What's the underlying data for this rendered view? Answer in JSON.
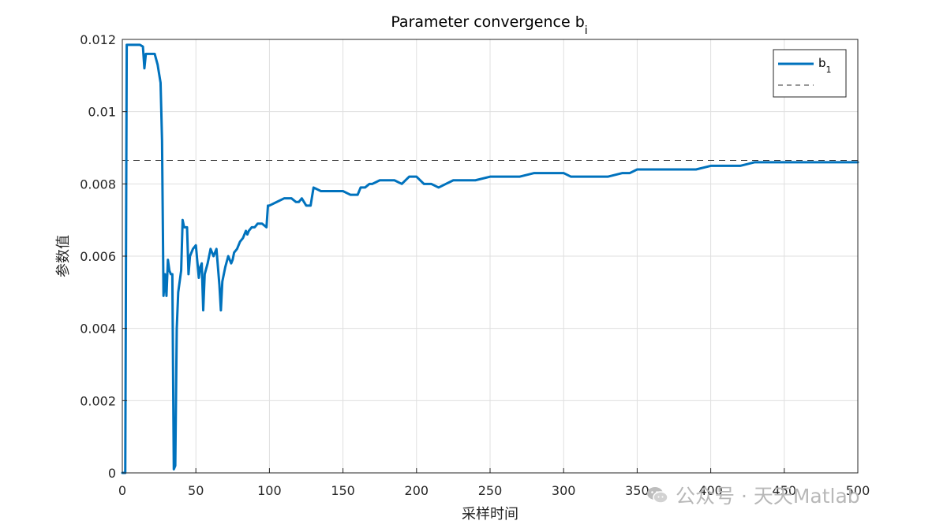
{
  "chart_data": {
    "type": "line",
    "title_main": "Parameter convergence b",
    "title_sub": "i",
    "xlabel": "采样时间",
    "ylabel": "参数值",
    "xlim": [
      0,
      500
    ],
    "ylim": [
      0,
      0.012
    ],
    "xticks": [
      "0",
      "50",
      "100",
      "150",
      "200",
      "250",
      "300",
      "350",
      "400",
      "450",
      "500"
    ],
    "yticks": [
      "0",
      "0.002",
      "0.004",
      "0.006",
      "0.008",
      "0.01",
      "0.012"
    ],
    "grid": true,
    "legend_placement": "top-right",
    "legend": {
      "series_label_main": "b",
      "series_label_sub": "1"
    },
    "reference_value": 0.00865,
    "series": [
      {
        "color": "#0072BD",
        "x": [
          0,
          2,
          3,
          5,
          8,
          10,
          12,
          14,
          15,
          16,
          18,
          20,
          22,
          24,
          26,
          27,
          28,
          29,
          30,
          31,
          32,
          33,
          34,
          35,
          36,
          37,
          38,
          40,
          41,
          42,
          44,
          45,
          46,
          48,
          50,
          52,
          53,
          54,
          55,
          56,
          58,
          60,
          62,
          64,
          66,
          67,
          68,
          70,
          72,
          74,
          75,
          76,
          78,
          80,
          82,
          84,
          85,
          86,
          88,
          90,
          92,
          95,
          98,
          99,
          100,
          105,
          110,
          112,
          115,
          118,
          120,
          122,
          125,
          128,
          130,
          135,
          140,
          145,
          150,
          155,
          160,
          162,
          165,
          168,
          170,
          175,
          180,
          185,
          190,
          195,
          200,
          205,
          210,
          215,
          220,
          225,
          230,
          240,
          250,
          260,
          270,
          280,
          290,
          300,
          305,
          310,
          320,
          330,
          340,
          345,
          350,
          360,
          370,
          380,
          390,
          400,
          405,
          410,
          420,
          430,
          440,
          450,
          460,
          470,
          480,
          490,
          500
        ],
        "y": [
          0,
          0,
          0.01185,
          0.01185,
          0.01185,
          0.01185,
          0.01185,
          0.0118,
          0.0112,
          0.0116,
          0.0116,
          0.0116,
          0.0116,
          0.0113,
          0.0108,
          0.0092,
          0.0049,
          0.0055,
          0.0049,
          0.0059,
          0.0056,
          0.0055,
          0.0055,
          0.0001,
          0.0002,
          0.004,
          0.005,
          0.0056,
          0.007,
          0.0068,
          0.0068,
          0.0055,
          0.006,
          0.0062,
          0.0063,
          0.0054,
          0.0057,
          0.0058,
          0.0045,
          0.0055,
          0.0058,
          0.0062,
          0.006,
          0.0062,
          0.0052,
          0.0045,
          0.0053,
          0.0057,
          0.006,
          0.0058,
          0.0059,
          0.0061,
          0.0062,
          0.0064,
          0.0065,
          0.0067,
          0.0066,
          0.0067,
          0.0068,
          0.0068,
          0.0069,
          0.0069,
          0.0068,
          0.0074,
          0.0074,
          0.0075,
          0.0076,
          0.0076,
          0.0076,
          0.0075,
          0.0075,
          0.0076,
          0.0074,
          0.0074,
          0.0079,
          0.0078,
          0.0078,
          0.0078,
          0.0078,
          0.0077,
          0.0077,
          0.0079,
          0.0079,
          0.008,
          0.008,
          0.0081,
          0.0081,
          0.0081,
          0.008,
          0.0082,
          0.0082,
          0.008,
          0.008,
          0.0079,
          0.008,
          0.0081,
          0.0081,
          0.0081,
          0.0082,
          0.0082,
          0.0082,
          0.0083,
          0.0083,
          0.0083,
          0.0082,
          0.0082,
          0.0082,
          0.0082,
          0.0083,
          0.0083,
          0.0084,
          0.0084,
          0.0084,
          0.0084,
          0.0084,
          0.0085,
          0.0085,
          0.0085,
          0.0085,
          0.0086,
          0.0086,
          0.0086,
          0.0086,
          0.0086,
          0.0086,
          0.0086,
          0.0086
        ]
      }
    ]
  },
  "watermark": {
    "icon": "wechat-icon",
    "text": "公众号 · 天天Matlab"
  }
}
